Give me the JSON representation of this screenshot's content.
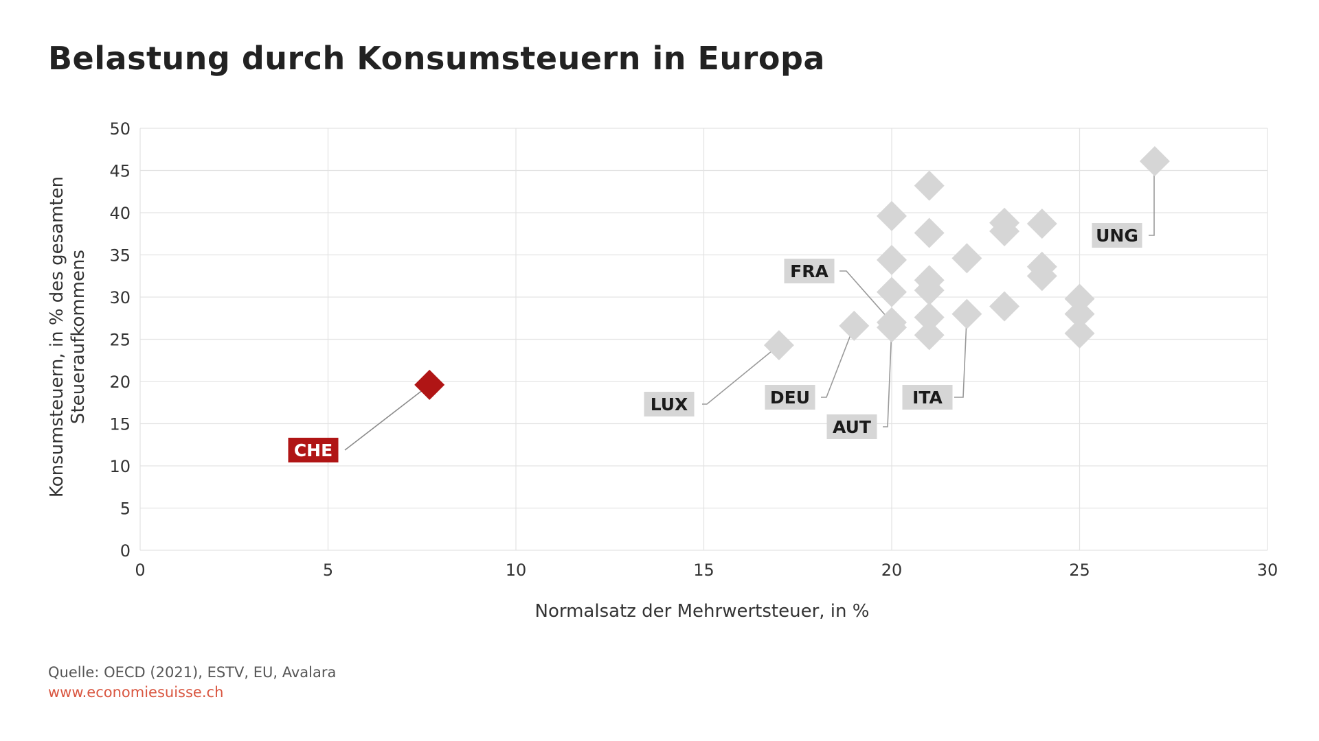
{
  "title": "Belastung durch Konsumsteuern in Europa",
  "source": "Quelle: OECD (2021), ESTV, EU, Avalara",
  "website": "www.economiesuisse.ch",
  "colors": {
    "highlight": "#b01515",
    "marker": "#d6d6d6",
    "label_bg": "#d6d6d6",
    "grid": "#e3e3e3",
    "leader": "#999999"
  },
  "chart_data": {
    "type": "scatter",
    "title": "Belastung durch Konsumsteuern in Europa",
    "xlabel": "Normalsatz der Mehrwertsteuer, in %",
    "ylabel_lines": [
      "Konsumsteuern, in % des gesamten",
      "Steueraufkommens"
    ],
    "xlim": [
      0,
      30
    ],
    "ylim": [
      0,
      50
    ],
    "xticks": [
      0,
      5,
      10,
      15,
      20,
      25,
      30
    ],
    "yticks": [
      0,
      5,
      10,
      15,
      20,
      25,
      30,
      35,
      40,
      45,
      50
    ],
    "grid": true,
    "points": [
      {
        "x": 7.7,
        "y": 19.6,
        "label": "CHE",
        "highlight": true
      },
      {
        "x": 17,
        "y": 24.3,
        "label": "LUX"
      },
      {
        "x": 19,
        "y": 26.6,
        "label": "DEU"
      },
      {
        "x": 20,
        "y": 27.0,
        "label": "FRA"
      },
      {
        "x": 20,
        "y": 26.4,
        "label": "AUT"
      },
      {
        "x": 22,
        "y": 28.0,
        "label": "ITA"
      },
      {
        "x": 27,
        "y": 46.1,
        "label": "UNG"
      },
      {
        "x": 20,
        "y": 39.6
      },
      {
        "x": 20,
        "y": 34.4
      },
      {
        "x": 20,
        "y": 30.6
      },
      {
        "x": 21,
        "y": 43.2
      },
      {
        "x": 21,
        "y": 37.6
      },
      {
        "x": 21,
        "y": 32.0
      },
      {
        "x": 21,
        "y": 30.8
      },
      {
        "x": 21,
        "y": 27.6
      },
      {
        "x": 21,
        "y": 25.5
      },
      {
        "x": 22,
        "y": 34.6
      },
      {
        "x": 23,
        "y": 38.8
      },
      {
        "x": 23,
        "y": 37.8
      },
      {
        "x": 23,
        "y": 28.9
      },
      {
        "x": 24,
        "y": 38.7
      },
      {
        "x": 24,
        "y": 33.6
      },
      {
        "x": 24,
        "y": 32.5
      },
      {
        "x": 25,
        "y": 29.8
      },
      {
        "x": 25,
        "y": 28.0
      },
      {
        "x": 25,
        "y": 25.7
      }
    ]
  }
}
